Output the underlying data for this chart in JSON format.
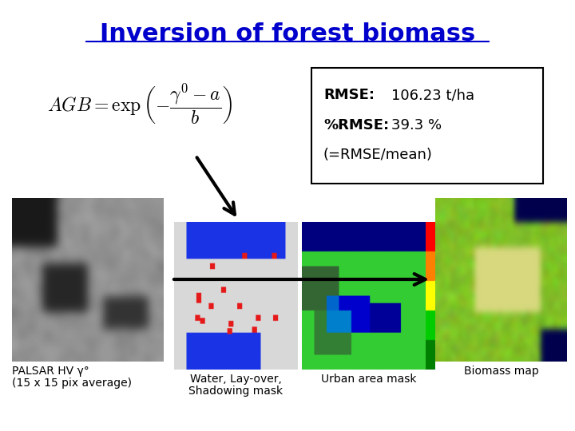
{
  "title": "Inversion of forest biomass",
  "title_color": "#0000CC",
  "title_fontsize": 22,
  "title_underline": true,
  "bg_color": "#ffffff",
  "rmse_box_text_line1_bold": "RMSE:",
  "rmse_box_text_line1_value": "  106.23 t/ha",
  "rmse_box_text_line2_bold": "%RMSE:",
  "rmse_box_text_line2_value": "   39.3 %",
  "rmse_box_text_line3": "(=RMSE/mean)",
  "formula_text": "$AGB = \\exp\\left(-\\dfrac{\\gamma^0 - a}{b}\\right)$",
  "palsar_label_line1": "PALSAR HV γ°",
  "palsar_label_line2": "(15 x 15 pix average)",
  "biomass_label": "Biomass map",
  "water_mask_label_line1": "Water, Lay-over,",
  "water_mask_label_line2": "Shadowing mask",
  "urban_mask_label": "Urban area mask"
}
